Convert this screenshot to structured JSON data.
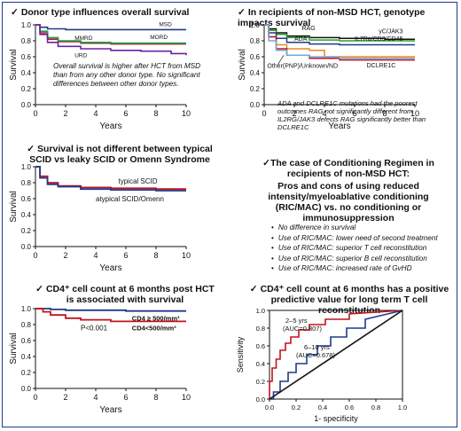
{
  "panels": {
    "p1": {
      "title": "Donor type influences overall survival",
      "note": "Overall survival is higher after HCT from MSD than from any other donor type. No significant differences between other donor types."
    },
    "p2": {
      "title": "In recipients of non-MSD HCT, genotype impacts survival",
      "note": "ADA and DCLRE1C mutations had the poorest outcomes RAG not significantly different from IL2RG/JAK3 defects RAG significantly better than DCLRE1C"
    },
    "p3": {
      "title": "Survival is not different between typical SCID vs leaky SCID or Omenn Syndrome"
    },
    "p4": {
      "title": "The case of Conditioning Regimen in recipients of non-MSD HCT:",
      "subtitle": "Pros and cons of using reduced intensity/myeloablative conditioning (RIC/MAC) vs. no conditioning or immunosuppression",
      "bullets": [
        "No difference in survival",
        "Use of RIC/MAC: lower need of second treatment",
        "Use of RIC/MAC: superior T cell reconstitution",
        "Use of RIC/MAC: superior B cell reconstitution",
        "Use of RIC/MAC: increased rate of GvHD"
      ]
    },
    "p5": {
      "title": "CD4⁺ cell count at 6 months post HCT is associated with survival",
      "pvalue": "P<0.001"
    },
    "p6": {
      "title": "CD4⁺ cell count at 6 months has a positive predictive value for long term T cell reconstitution"
    }
  },
  "chart_data": [
    {
      "type": "line",
      "ylabel": "Survival",
      "xlabel": "Years",
      "xlim": [
        0,
        10
      ],
      "ylim": [
        0,
        1
      ],
      "xticks": [
        0,
        2,
        4,
        6,
        8,
        10
      ],
      "yticks": [
        "0.0",
        "0.2",
        "0.4",
        "0.6",
        "0.8",
        "1.0"
      ],
      "series": [
        {
          "name": "MSD",
          "color": "#1f3a8a",
          "x": [
            0,
            0.3,
            0.8,
            2,
            4,
            6,
            8,
            10
          ],
          "y": [
            1,
            0.97,
            0.95,
            0.94,
            0.94,
            0.94,
            0.94,
            0.94
          ]
        },
        {
          "name": "MMRD",
          "color": "#c1121f",
          "x": [
            0,
            0.3,
            0.8,
            1.5,
            3,
            5,
            8,
            10
          ],
          "y": [
            1,
            0.9,
            0.82,
            0.79,
            0.77,
            0.76,
            0.76,
            0.76
          ]
        },
        {
          "name": "MORD",
          "color": "#16a34a",
          "x": [
            0,
            0.3,
            0.8,
            1.5,
            3,
            5,
            8,
            10
          ],
          "y": [
            1,
            0.92,
            0.84,
            0.8,
            0.78,
            0.77,
            0.77,
            0.77
          ]
        },
        {
          "name": "URD",
          "color": "#6b21a8",
          "x": [
            0,
            0.3,
            0.8,
            1.5,
            3,
            5,
            7,
            9,
            10
          ],
          "y": [
            1,
            0.88,
            0.78,
            0.73,
            0.7,
            0.68,
            0.67,
            0.64,
            0.62
          ]
        }
      ]
    },
    {
      "type": "line",
      "ylabel": "Survival",
      "xlabel": "Years",
      "xlim": [
        0,
        10
      ],
      "ylim": [
        0,
        1
      ],
      "xticks": [
        0,
        2,
        4,
        6,
        8,
        10
      ],
      "yticks": [
        "0.0",
        "0.2",
        "0.4",
        "0.6",
        "0.8",
        "1.0"
      ],
      "series": [
        {
          "name": "RAG",
          "color": "#111111",
          "x": [
            0,
            0.3,
            0.8,
            1.5,
            3,
            5,
            8,
            10
          ],
          "y": [
            1,
            0.95,
            0.9,
            0.86,
            0.84,
            0.83,
            0.82,
            0.82
          ]
        },
        {
          "name": "γC/JAK3",
          "color": "#2ca02c",
          "x": [
            0,
            0.3,
            0.8,
            1.5,
            3,
            5,
            8,
            10
          ],
          "y": [
            1,
            0.93,
            0.88,
            0.84,
            0.81,
            0.8,
            0.8,
            0.8
          ]
        },
        {
          "name": "IL7Ra/CD3/CD45",
          "color": "#1f3a8a",
          "x": [
            0,
            0.3,
            0.8,
            1.5,
            3,
            5,
            8,
            10
          ],
          "y": [
            1,
            0.9,
            0.83,
            0.78,
            0.76,
            0.75,
            0.75,
            0.75
          ]
        },
        {
          "name": "ADA",
          "color": "#ea8a1c",
          "x": [
            0,
            0.3,
            0.8,
            1.5,
            3,
            4,
            6,
            10
          ],
          "y": [
            1,
            0.85,
            0.75,
            0.7,
            0.68,
            0.6,
            0.6,
            0.6
          ]
        },
        {
          "name": "DCLRE1C",
          "color": "#c1121f",
          "x": [
            0,
            0.3,
            0.8,
            1.5,
            3,
            5,
            8,
            10
          ],
          "y": [
            1,
            0.85,
            0.7,
            0.62,
            0.58,
            0.56,
            0.56,
            0.56
          ]
        },
        {
          "name": "Other(PNP)/Unknown/ND",
          "color": "#6fa8dc",
          "x": [
            0,
            0.3,
            0.8,
            1.5,
            3,
            5,
            8,
            10
          ],
          "y": [
            1,
            0.8,
            0.68,
            0.62,
            0.6,
            0.58,
            0.58,
            0.58
          ]
        }
      ]
    },
    {
      "type": "line",
      "ylabel": "Survival",
      "xlabel": "Years",
      "xlim": [
        0,
        10
      ],
      "ylim": [
        0,
        1
      ],
      "xticks": [
        0,
        2,
        4,
        6,
        8,
        10
      ],
      "yticks": [
        "0.0",
        "0.2",
        "0.4",
        "0.6",
        "0.8",
        "1.0"
      ],
      "series": [
        {
          "name": "typical SCID",
          "color": "#c1121f",
          "x": [
            0,
            0.3,
            0.8,
            1.5,
            3,
            5,
            8,
            10
          ],
          "y": [
            1,
            0.88,
            0.8,
            0.76,
            0.74,
            0.73,
            0.72,
            0.72
          ]
        },
        {
          "name": "atypical SCID/Omenn",
          "color": "#1f3a8a",
          "x": [
            0,
            0.3,
            0.8,
            1.5,
            3,
            5,
            8,
            10
          ],
          "y": [
            1,
            0.86,
            0.78,
            0.75,
            0.72,
            0.71,
            0.7,
            0.7
          ]
        }
      ]
    },
    {
      "type": "line",
      "ylabel": "Survival",
      "xlabel": "Years",
      "xlim": [
        0,
        10
      ],
      "ylim": [
        0,
        1
      ],
      "xticks": [
        0,
        2,
        4,
        6,
        8,
        10
      ],
      "yticks": [
        "0.0",
        "0.2",
        "0.4",
        "0.6",
        "0.8",
        "1.0"
      ],
      "series": [
        {
          "name": "CD4 ≥ 500/mm³",
          "color": "#1f3a8a",
          "x": [
            0,
            0.5,
            1,
            2,
            4,
            6,
            8,
            10
          ],
          "y": [
            1,
            1,
            0.99,
            0.98,
            0.98,
            0.97,
            0.97,
            0.97
          ]
        },
        {
          "name": "CD4<500/mm³",
          "color": "#c1121f",
          "x": [
            0,
            0.5,
            1,
            2,
            3,
            5,
            8,
            10
          ],
          "y": [
            1,
            0.96,
            0.92,
            0.88,
            0.86,
            0.84,
            0.84,
            0.84
          ]
        }
      ]
    },
    {
      "type": "line",
      "xlabel": "1- specificity",
      "ylabel": "Sensitivity",
      "xlim": [
        0,
        1
      ],
      "ylim": [
        0,
        1
      ],
      "xticks": [
        "0.0",
        "0.2",
        "0.4",
        "0.6",
        "0.8",
        "1.0"
      ],
      "yticks": [
        "0.0",
        "0.2",
        "0.4",
        "0.6",
        "0.8",
        "1.0"
      ],
      "series": [
        {
          "name": "2–5 yrs",
          "label": "2–5 yrs\n(AUC=0.807)",
          "color": "#c1121f",
          "x": [
            0,
            0,
            0.02,
            0.02,
            0.05,
            0.05,
            0.08,
            0.08,
            0.12,
            0.12,
            0.16,
            0.16,
            0.22,
            0.22,
            0.3,
            0.3,
            0.42,
            0.42,
            0.6,
            0.6,
            0.8,
            1
          ],
          "y": [
            0,
            0.2,
            0.2,
            0.35,
            0.35,
            0.45,
            0.45,
            0.55,
            0.55,
            0.63,
            0.63,
            0.7,
            0.7,
            0.78,
            0.78,
            0.84,
            0.84,
            0.9,
            0.9,
            0.96,
            0.98,
            1
          ]
        },
        {
          "name": "6–10 yrs",
          "label": "6–10 yrs\n(AUC=0.678)",
          "color": "#1f3a8a",
          "x": [
            0,
            0.03,
            0.03,
            0.08,
            0.08,
            0.14,
            0.14,
            0.2,
            0.2,
            0.28,
            0.28,
            0.36,
            0.36,
            0.46,
            0.46,
            0.58,
            0.58,
            0.72,
            0.72,
            0.86,
            1
          ],
          "y": [
            0,
            0,
            0.08,
            0.08,
            0.2,
            0.2,
            0.3,
            0.3,
            0.4,
            0.4,
            0.5,
            0.5,
            0.6,
            0.6,
            0.7,
            0.7,
            0.8,
            0.8,
            0.9,
            0.95,
            1
          ]
        },
        {
          "name": "reference",
          "color": "#111111",
          "x": [
            0,
            1
          ],
          "y": [
            0,
            1
          ]
        }
      ]
    }
  ]
}
